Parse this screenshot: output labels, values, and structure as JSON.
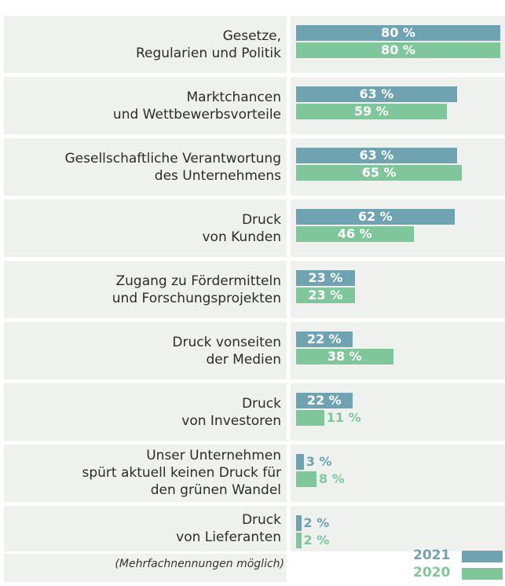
{
  "chart_data": {
    "type": "bar",
    "orientation": "horizontal",
    "categories": [
      "Gesetze,\nRegularien und Politik",
      "Marktchancen\nund Wettbewerbsvorteile",
      "Gesellschaftliche Verantwortung\ndes Unternehmens",
      "Druck\nvon Kunden",
      "Zugang zu Fördermitteln\nund Forschungsprojekten",
      "Druck vonseiten\nder Medien",
      "Druck\nvon Investoren",
      "Unser Unternehmen\nspürt aktuell keinen Druck für\nden grünen Wandel",
      "Druck\nvon Lieferanten"
    ],
    "series": [
      {
        "name": "2021",
        "color": "#6fa3b1",
        "values": [
          80,
          63,
          63,
          62,
          23,
          22,
          22,
          3,
          2
        ],
        "value_labels": [
          "80 %",
          "63 %",
          "63 %",
          "62 %",
          "23 %",
          "22 %",
          "22 %",
          "3 %",
          "2 %"
        ]
      },
      {
        "name": "2020",
        "color": "#80c69b",
        "values": [
          80,
          59,
          65,
          46,
          23,
          38,
          11,
          8,
          2
        ],
        "value_labels": [
          "80 %",
          "59 %",
          "65 %",
          "46 %",
          "23 %",
          "38 %",
          "11 %",
          "8 %",
          "2 %"
        ]
      }
    ],
    "xlim": [
      0,
      80
    ],
    "note": "(Mehrfachnennungen möglich)"
  }
}
